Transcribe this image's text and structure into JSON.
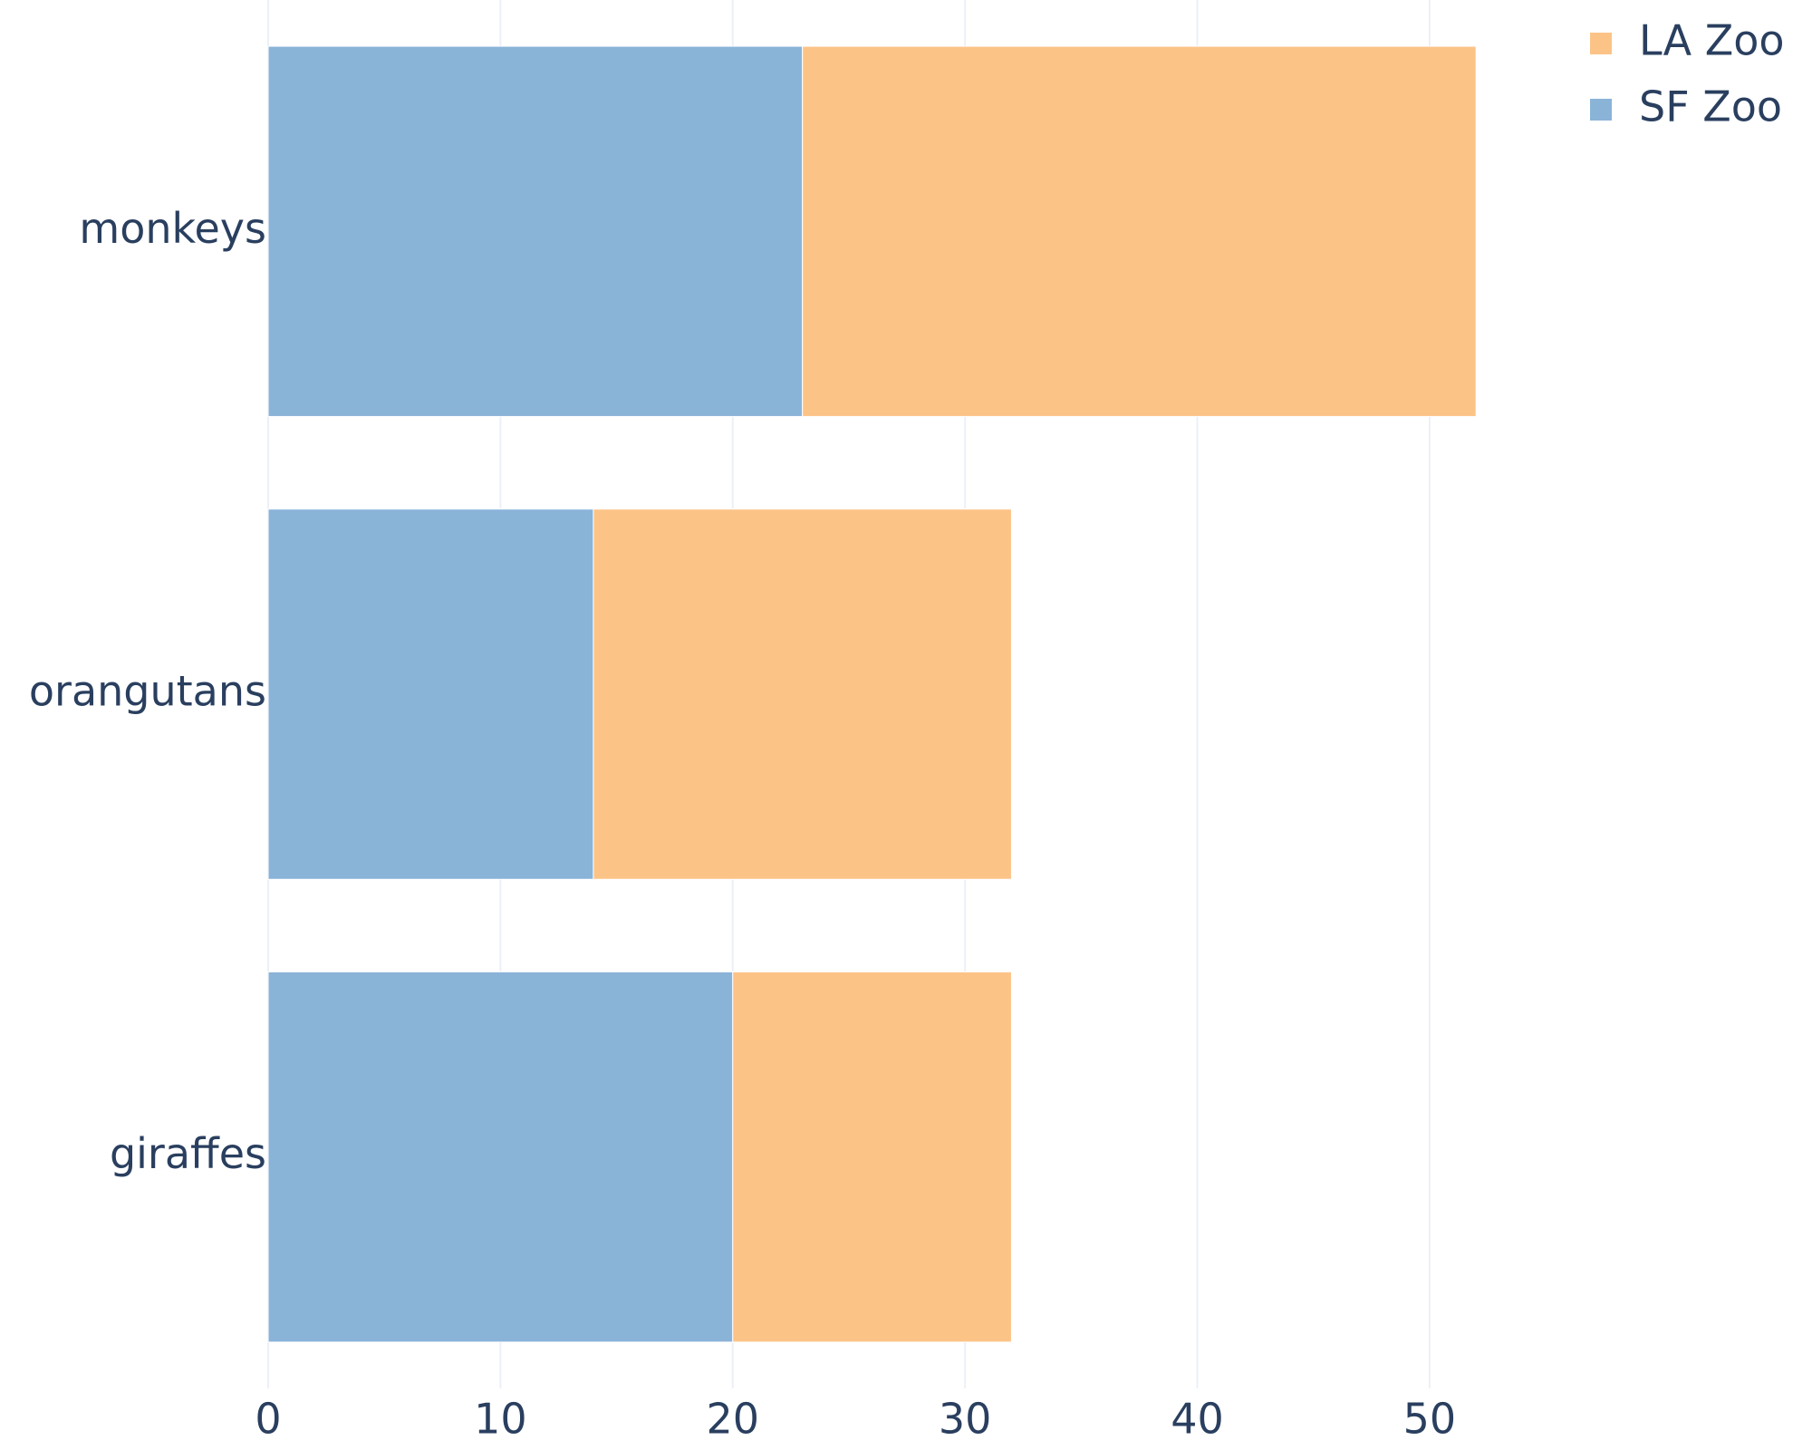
{
  "chart_data": {
    "type": "stacked-barh",
    "categories": [
      "giraffes",
      "orangutans",
      "monkeys"
    ],
    "series": [
      {
        "name": "SF Zoo",
        "color": "#8ab3d8",
        "values": [
          20,
          14,
          23
        ]
      },
      {
        "name": "LA Zoo",
        "color": "#fcc387",
        "values": [
          12,
          18,
          29
        ]
      }
    ],
    "xlim": [
      0,
      58
    ],
    "xticks": [
      0,
      10,
      20,
      30,
      40,
      50
    ],
    "grid": true
  }
}
